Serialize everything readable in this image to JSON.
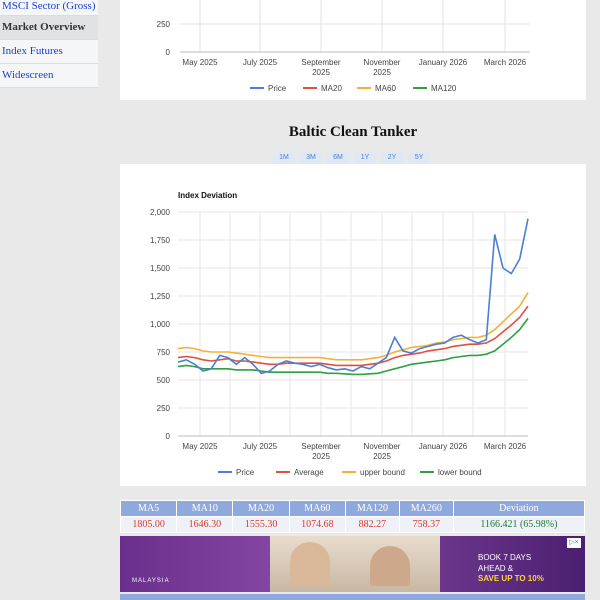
{
  "sidebar": {
    "items": [
      {
        "label": "MSCI Sector (Gross)",
        "active": false
      },
      {
        "label": "Market Overview",
        "active": true
      },
      {
        "label": "Index Futures",
        "active": false
      },
      {
        "label": "Widescreen",
        "active": false
      }
    ]
  },
  "top_chart": {
    "y_ticks": [
      "250",
      "0"
    ],
    "x_ticks": [
      [
        "May 2025"
      ],
      [
        "July 2025"
      ],
      [
        "September",
        "2025"
      ],
      [
        "November",
        "2025"
      ],
      [
        "January 2026"
      ],
      [
        "March 2026"
      ]
    ],
    "legend": [
      {
        "name": "Price",
        "color": "#4a7fd4"
      },
      {
        "name": "MA20",
        "color": "#e0503e"
      },
      {
        "name": "MA60",
        "color": "#f5b03c"
      },
      {
        "name": "MA120",
        "color": "#2f9e44"
      }
    ]
  },
  "section": {
    "title": "Baltic Clean Tanker",
    "range_buttons": [
      "1M",
      "3M",
      "6M",
      "1Y",
      "2Y",
      "5Y"
    ]
  },
  "chart_data": {
    "type": "line",
    "title": "Index Deviation",
    "ylim": [
      0,
      2000
    ],
    "y_ticks": [
      0,
      250,
      500,
      750,
      1000,
      1250,
      1500,
      1750,
      2000
    ],
    "y_tick_labels": [
      "0",
      "250",
      "500",
      "750",
      "1,000",
      "1,250",
      "1,500",
      "1,750",
      "2,000"
    ],
    "x_tick_labels": [
      [
        "May 2025"
      ],
      [
        "July 2025"
      ],
      [
        "September",
        "2025"
      ],
      [
        "November",
        "2025"
      ],
      [
        "January 2026"
      ],
      [
        "March 2026"
      ]
    ],
    "grid": true,
    "legend_position": "bottom",
    "series": [
      {
        "name": "Price",
        "color": "#4a7fd4",
        "values": [
          660,
          680,
          640,
          580,
          600,
          720,
          700,
          640,
          700,
          640,
          560,
          580,
          640,
          670,
          650,
          640,
          620,
          640,
          610,
          590,
          600,
          580,
          620,
          600,
          650,
          700,
          880,
          760,
          740,
          780,
          800,
          820,
          830,
          880,
          900,
          860,
          830,
          860,
          1800,
          1500,
          1450,
          1580,
          1940
        ]
      },
      {
        "name": "Average",
        "color": "#e0503e",
        "values": [
          700,
          710,
          700,
          680,
          670,
          680,
          690,
          670,
          670,
          660,
          650,
          640,
          640,
          650,
          650,
          650,
          650,
          650,
          640,
          630,
          630,
          630,
          630,
          640,
          650,
          670,
          700,
          720,
          730,
          740,
          760,
          770,
          780,
          800,
          810,
          820,
          820,
          830,
          870,
          930,
          990,
          1060,
          1160
        ]
      },
      {
        "name": "upper bound",
        "color": "#f5b03c",
        "values": [
          780,
          790,
          780,
          760,
          750,
          750,
          750,
          740,
          730,
          720,
          710,
          700,
          700,
          700,
          700,
          700,
          700,
          700,
          690,
          680,
          680,
          680,
          680,
          690,
          700,
          720,
          750,
          770,
          790,
          800,
          810,
          830,
          840,
          860,
          870,
          880,
          880,
          900,
          950,
          1020,
          1090,
          1160,
          1280
        ]
      },
      {
        "name": "lower bound",
        "color": "#2f9e44",
        "values": [
          620,
          630,
          620,
          600,
          600,
          600,
          600,
          590,
          590,
          590,
          580,
          570,
          570,
          570,
          570,
          570,
          570,
          570,
          560,
          560,
          555,
          550,
          550,
          555,
          560,
          580,
          600,
          620,
          640,
          650,
          660,
          670,
          680,
          700,
          710,
          720,
          720,
          730,
          760,
          820,
          880,
          950,
          1050
        ]
      }
    ]
  },
  "stats_table": {
    "headers": [
      "MA5",
      "MA10",
      "MA20",
      "MA60",
      "MA120",
      "MA260",
      "Deviation"
    ],
    "values": [
      "1805.00",
      "1646.30",
      "1555.30",
      "1074.68",
      "882.27",
      "758.37",
      "1166.421 (65.98%)"
    ]
  },
  "ad": {
    "brand": "MALAYSIA",
    "line1": "BOOK 7 DAYS",
    "line2": "AHEAD &",
    "line3": "SAVE UP TO 10%",
    "close": "▷×"
  }
}
